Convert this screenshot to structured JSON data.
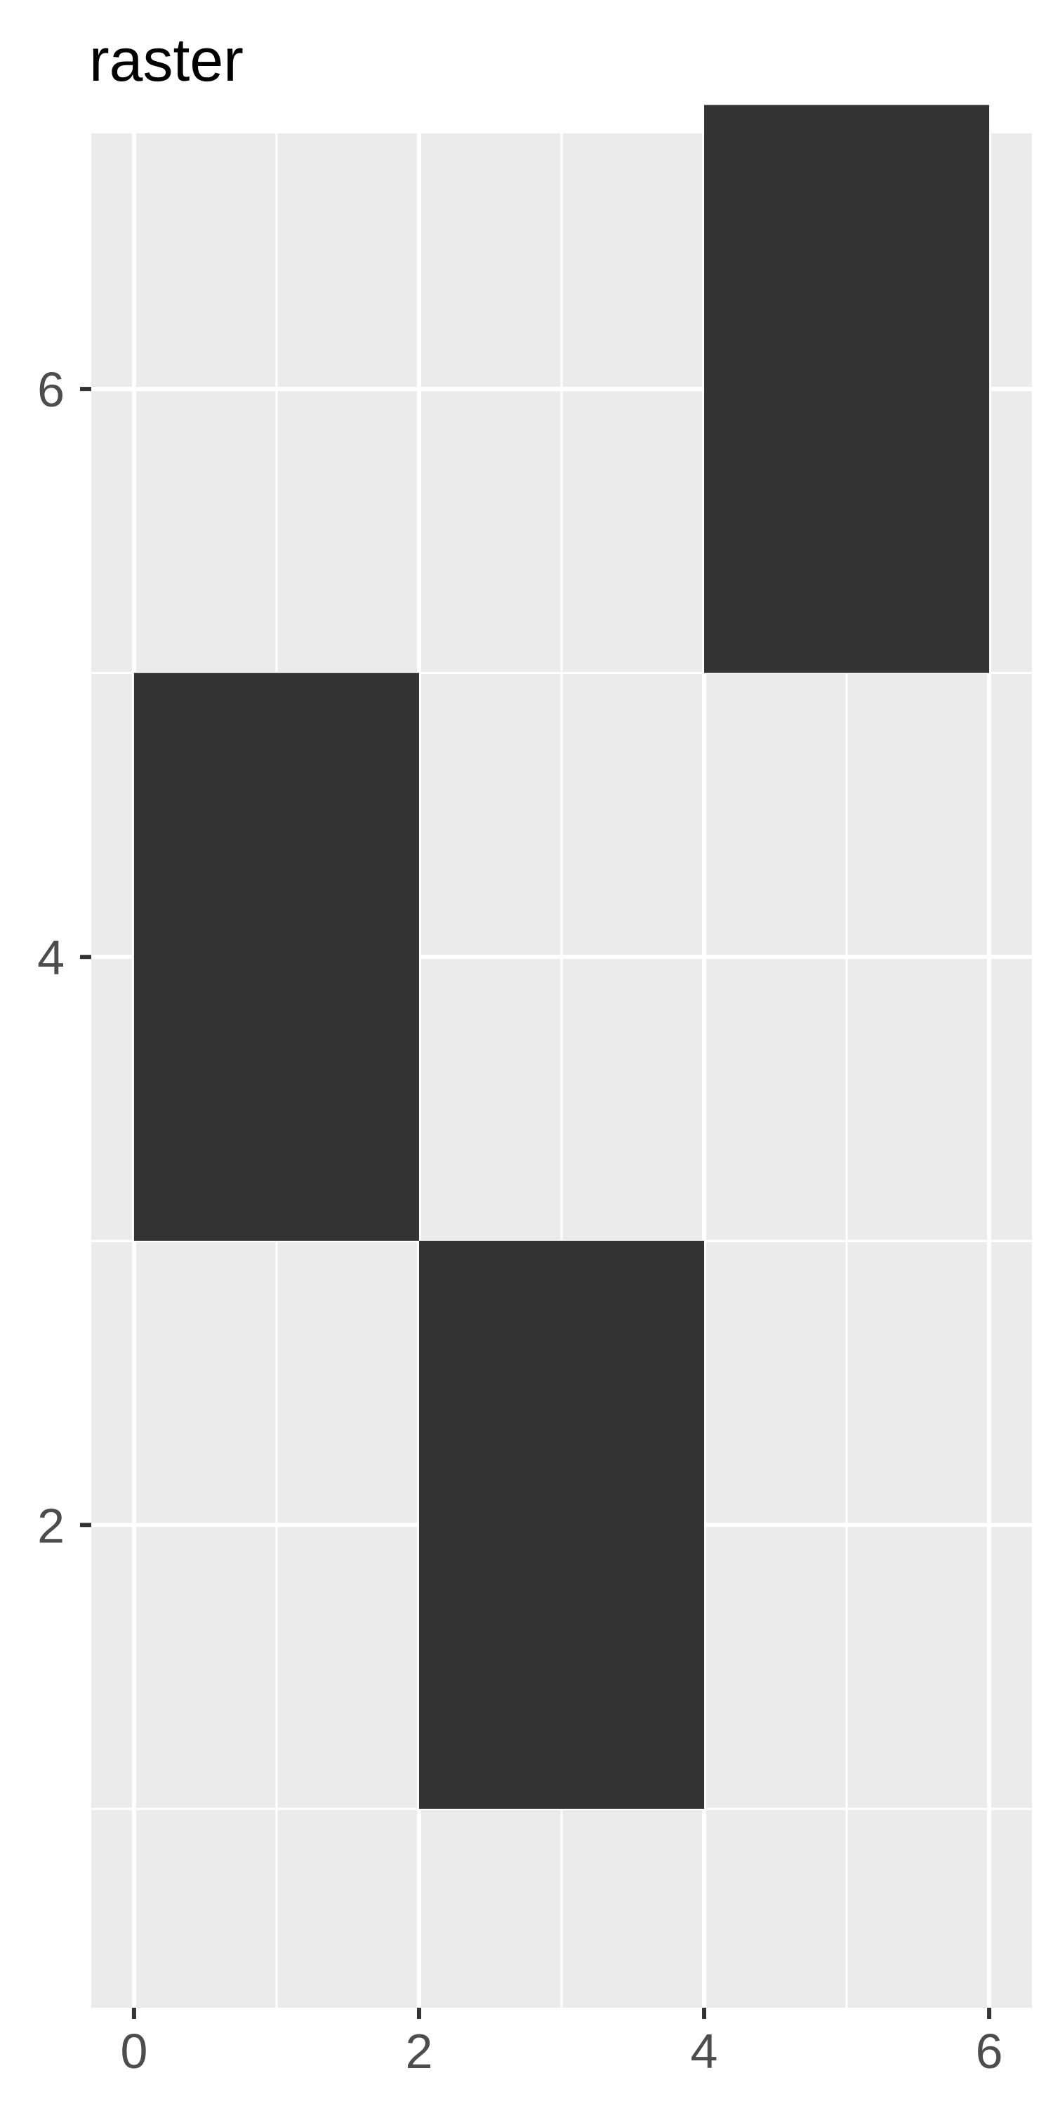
{
  "chart_data": {
    "type": "heatmap",
    "geom": "raster",
    "title": "raster",
    "xlabel": "",
    "ylabel": "",
    "xlim": [
      -0.3,
      6.3
    ],
    "ylim": [
      0.3,
      6.9
    ],
    "x_ticks": [
      0,
      2,
      4,
      6
    ],
    "x_tick_labels": [
      "0",
      "2",
      "4",
      "6"
    ],
    "y_ticks": [
      2,
      4,
      6
    ],
    "y_tick_labels": [
      "2",
      "4",
      "6"
    ],
    "x_minor_grid": [
      1,
      3,
      5
    ],
    "y_minor_grid": [
      1,
      3,
      5
    ],
    "grid": true,
    "legend": "none",
    "cells": [
      {
        "x": 1,
        "y": 4,
        "width": 2,
        "height": 2
      },
      {
        "x": 3,
        "y": 2,
        "width": 2,
        "height": 2
      },
      {
        "x": 5,
        "y": 6,
        "width": 2,
        "height": 2
      }
    ],
    "colors": {
      "panel_background": "#EBEBEB",
      "grid_major": "#FFFFFF",
      "grid_minor": "#FFFFFF",
      "cell_fill": "#333333",
      "tick_color": "#333333",
      "tick_label_color": "#4D4D4D",
      "title_color": "#000000"
    }
  }
}
